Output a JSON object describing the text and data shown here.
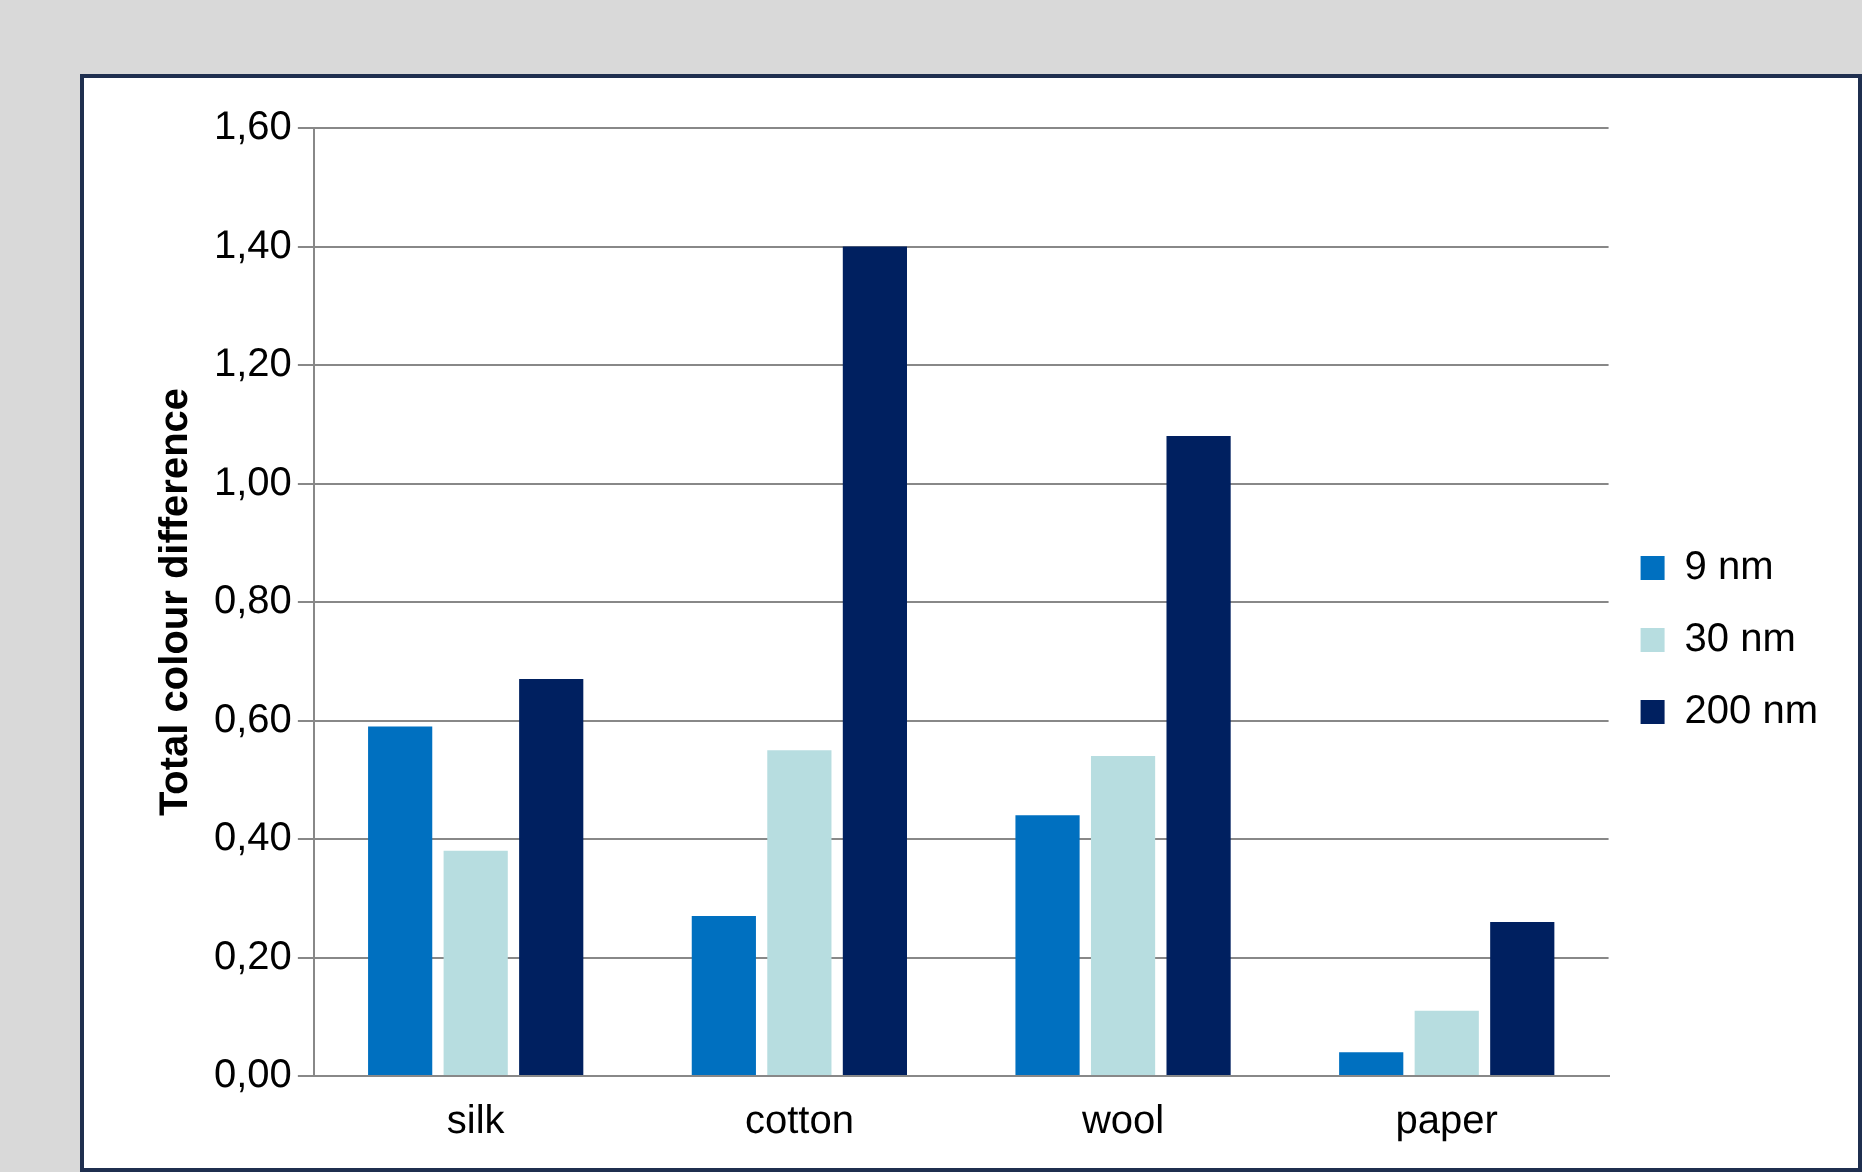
{
  "chart_data": {
    "type": "bar",
    "ylabel": "Total colour difference",
    "categories": [
      "silk",
      "cotton",
      "wool",
      "paper"
    ],
    "series": [
      {
        "name": "9 nm",
        "color": "#0070c0",
        "values": [
          0.59,
          0.27,
          0.44,
          0.04
        ]
      },
      {
        "name": "30 nm",
        "color": "#b7dde0",
        "values": [
          0.38,
          0.55,
          0.54,
          0.11
        ]
      },
      {
        "name": "200 nm",
        "color": "#002060",
        "values": [
          0.67,
          1.4,
          1.08,
          0.26
        ]
      }
    ],
    "ylim": [
      0,
      1.6
    ],
    "yticks": [
      {
        "value": 0,
        "label": "0,00"
      },
      {
        "value": 0.2,
        "label": "0,20"
      },
      {
        "value": 0.4,
        "label": "0,40"
      },
      {
        "value": 0.6,
        "label": "0,60"
      },
      {
        "value": 0.8,
        "label": "0,80"
      },
      {
        "value": 1,
        "label": "1,00"
      },
      {
        "value": 1.2,
        "label": "1,20"
      },
      {
        "value": 1.4,
        "label": "1,40"
      },
      {
        "value": 1.6,
        "label": "1,60"
      }
    ],
    "grid": "y",
    "legend": "right"
  }
}
